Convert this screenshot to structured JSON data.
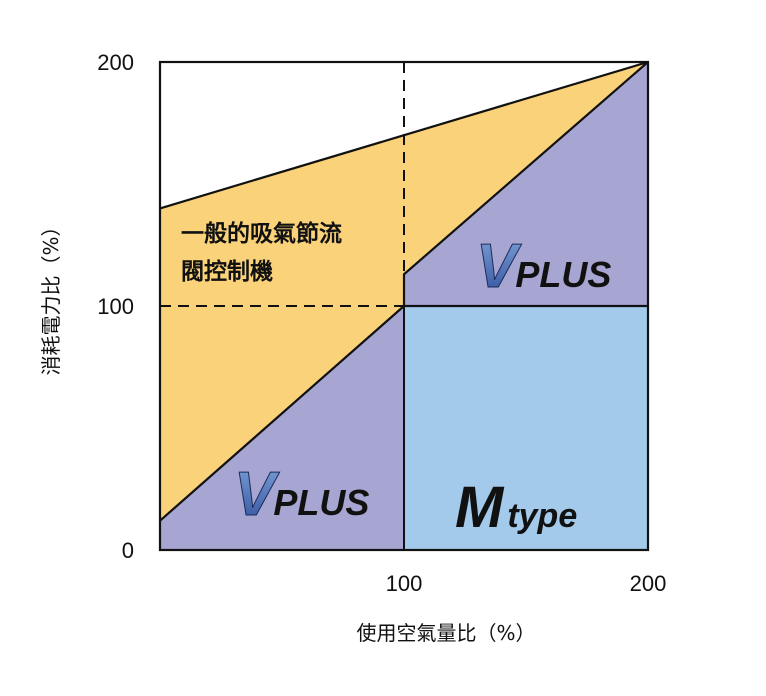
{
  "chart_data": {
    "type": "area",
    "xlabel": "使用空氣量比（%）",
    "ylabel": "消耗電力比（%）",
    "xlim": [
      0,
      200
    ],
    "ylim": [
      0,
      200
    ],
    "x_ticks": [
      "100",
      "200"
    ],
    "y_ticks": [
      "0",
      "100",
      "200"
    ],
    "series": [
      {
        "name": "一般的吸氣節流閥控制機",
        "x": [
          0,
          100,
          200
        ],
        "y": [
          140,
          170,
          200
        ],
        "color": "#FAD27A"
      },
      {
        "name": "VPLUS",
        "x": [
          0,
          100,
          100,
          200
        ],
        "y": [
          12,
          100,
          113,
          200
        ],
        "color": "#A7A6D2"
      },
      {
        "name": "Mtype",
        "x": [
          100,
          200
        ],
        "y": [
          100,
          100
        ],
        "color": "#A3CAEA"
      }
    ],
    "reference_lines": [
      {
        "axis": "x",
        "value": 100,
        "style": "dashed"
      },
      {
        "axis": "y",
        "value": 100,
        "style": "dashed"
      }
    ],
    "annotations": {
      "conventional_line1": "一般的吸氣節流",
      "conventional_line2": "閥控制機",
      "vplus_v": "V",
      "vplus_plus": "PLUS",
      "mtype_m": "M",
      "mtype_type": "type"
    },
    "grid": false,
    "legend": "none"
  }
}
